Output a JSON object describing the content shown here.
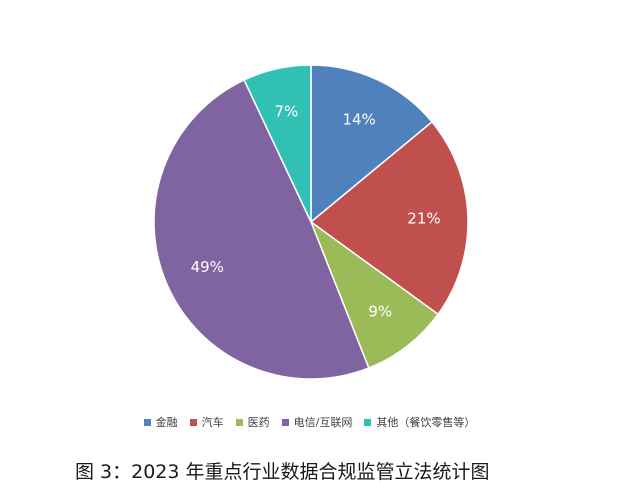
{
  "caption": "图 3：2023 年重点行业数据合规监管立法统计图",
  "chart_data": {
    "type": "pie",
    "title": "",
    "slices": [
      {
        "name": "金融",
        "value": 14,
        "label": "14%",
        "color": "#4f81bd"
      },
      {
        "name": "汽车",
        "value": 21,
        "label": "21%",
        "color": "#c0504d"
      },
      {
        "name": "医药",
        "value": 9,
        "label": "9%",
        "color": "#9bbb59"
      },
      {
        "name": "电信/互联网",
        "value": 49,
        "label": "49%",
        "color": "#8064a2"
      },
      {
        "name": "其他（餐饮零售等）",
        "value": 7,
        "label": "7%",
        "color": "#31c0b4"
      }
    ],
    "legend_position": "bottom",
    "start_angle": "top, clockwise"
  }
}
